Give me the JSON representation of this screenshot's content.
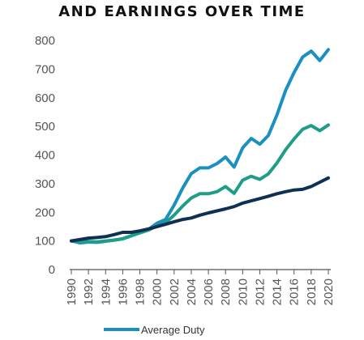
{
  "chart_data": {
    "type": "line",
    "title": "AND EARNINGS OVER TIME",
    "xlabel": "",
    "ylabel": "",
    "ylim": [
      0,
      800
    ],
    "yticks": [
      0,
      100,
      200,
      300,
      400,
      500,
      600,
      700,
      800
    ],
    "xticks": [
      1990,
      1992,
      1994,
      1996,
      1998,
      2000,
      2002,
      2004,
      2006,
      2008,
      2010,
      2012,
      2014,
      2016,
      2018,
      2020
    ],
    "grid": false,
    "legend_position": "bottom",
    "x": [
      1990,
      1991,
      1992,
      1993,
      1994,
      1995,
      1996,
      1997,
      1998,
      1999,
      2000,
      2001,
      2002,
      2003,
      2004,
      2005,
      2006,
      2007,
      2008,
      2009,
      2010,
      2011,
      2012,
      2013,
      2014,
      2015,
      2016,
      2017,
      2018,
      2019,
      2020
    ],
    "series": [
      {
        "name": "Average Duty",
        "color": "#1a90c0",
        "in_legend": true,
        "values": [
          100,
          93,
          96,
          95,
          99,
          103,
          108,
          118,
          130,
          140,
          162,
          175,
          225,
          285,
          335,
          355,
          355,
          370,
          393,
          358,
          425,
          458,
          438,
          468,
          540,
          625,
          688,
          742,
          763,
          730,
          768
        ]
      },
      {
        "name": "",
        "color": "#1e9e88",
        "in_legend": false,
        "values": [
          100,
          97,
          98,
          97,
          100,
          103,
          107,
          118,
          128,
          138,
          152,
          163,
          190,
          222,
          250,
          265,
          265,
          272,
          290,
          266,
          312,
          326,
          315,
          334,
          372,
          418,
          456,
          490,
          503,
          485,
          505
        ]
      },
      {
        "name": "",
        "color": "#0f2f55",
        "in_legend": false,
        "values": [
          100,
          105,
          110,
          112,
          115,
          122,
          130,
          130,
          135,
          142,
          150,
          158,
          167,
          175,
          180,
          190,
          198,
          205,
          212,
          220,
          232,
          240,
          248,
          256,
          265,
          272,
          278,
          280,
          290,
          305,
          320
        ]
      }
    ]
  }
}
